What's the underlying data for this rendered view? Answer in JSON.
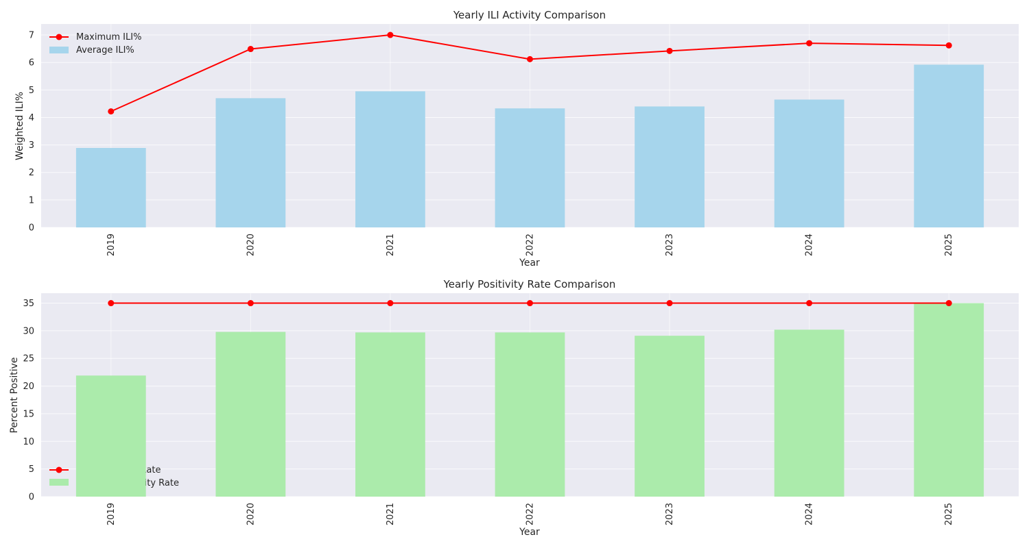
{
  "chart_data": [
    {
      "type": "bar+line",
      "title": "Yearly ILI Activity Comparison",
      "xlabel": "Year",
      "ylabel": "Weighted ILI%",
      "categories": [
        "2019",
        "2020",
        "2021",
        "2022",
        "2023",
        "2024",
        "2025"
      ],
      "ylim": [
        0,
        7.4
      ],
      "yticks": [
        0,
        1,
        2,
        3,
        4,
        5,
        6,
        7
      ],
      "grid": true,
      "legend_position": "upper-left",
      "series": [
        {
          "name": "Maximum ILI%",
          "kind": "line",
          "color": "#ff0000",
          "values": [
            4.22,
            6.49,
            7.0,
            6.12,
            6.42,
            6.7,
            6.62
          ]
        },
        {
          "name": "Average ILI%",
          "kind": "bar",
          "color": "#a6d5ec",
          "values": [
            2.89,
            4.7,
            4.95,
            4.33,
            4.4,
            4.65,
            5.92
          ]
        }
      ]
    },
    {
      "type": "bar+line",
      "title": "Yearly Positivity Rate Comparison",
      "xlabel": "Year",
      "ylabel": "Percent Positive",
      "categories": [
        "2019",
        "2020",
        "2021",
        "2022",
        "2023",
        "2024",
        "2025"
      ],
      "ylim": [
        0,
        36.8
      ],
      "yticks": [
        0,
        5,
        10,
        15,
        20,
        25,
        30,
        35
      ],
      "grid": true,
      "legend_position": "lower-left",
      "series": [
        {
          "name": "Max Positivity Rate",
          "kind": "line",
          "color": "#ff0000",
          "values": [
            35.0,
            35.0,
            35.0,
            35.0,
            35.0,
            35.0,
            35.0
          ]
        },
        {
          "name": "Average Positivity Rate",
          "kind": "bar",
          "color": "#abebab",
          "values": [
            21.9,
            29.8,
            29.7,
            29.7,
            29.1,
            30.2,
            35.0
          ]
        }
      ]
    }
  ]
}
